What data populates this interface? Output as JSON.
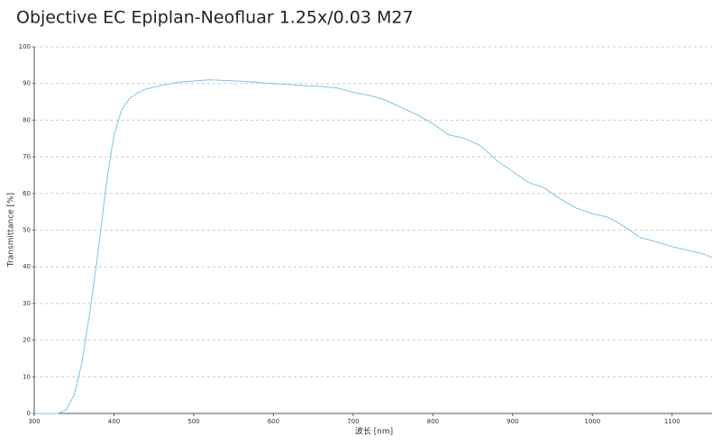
{
  "chart_data": {
    "type": "line",
    "title": "Objective EC Epiplan-Neofluar 1.25x/0.03 M27",
    "x_label": "波长 [nm]",
    "y_label": "Transmittance [%]",
    "x": [
      300,
      310,
      320,
      330,
      340,
      350,
      360,
      370,
      380,
      390,
      400,
      410,
      420,
      430,
      440,
      460,
      480,
      500,
      520,
      540,
      560,
      580,
      600,
      620,
      640,
      660,
      680,
      700,
      720,
      740,
      760,
      780,
      800,
      820,
      840,
      860,
      880,
      900,
      920,
      940,
      960,
      980,
      1000,
      1020,
      1040,
      1060,
      1080,
      1100,
      1120,
      1140,
      1150
    ],
    "series": [
      {
        "name": "Transmittance",
        "color": "#7cc4ea",
        "values": [
          0,
          0,
          0,
          0,
          1,
          5,
          14,
          28,
          44,
          62,
          76,
          83,
          86,
          87.5,
          88.5,
          89.5,
          90.3,
          90.7,
          91,
          90.8,
          90.6,
          90.3,
          90,
          89.7,
          89.4,
          89.2,
          88.8,
          87.6,
          86.8,
          85.5,
          83.5,
          81.5,
          79,
          76,
          75,
          73,
          69,
          66,
          63,
          61.5,
          58.5,
          56,
          54.5,
          53.5,
          51,
          48,
          46.8,
          45.5,
          44.5,
          43.5,
          42.5
        ]
      }
    ],
    "xlim": [
      300,
      1150
    ],
    "ylim": [
      0,
      100
    ],
    "xticks": [
      300,
      400,
      500,
      600,
      700,
      800,
      900,
      1000,
      1100
    ],
    "yticks": [
      0,
      10,
      20,
      30,
      40,
      50,
      60,
      70,
      80,
      90,
      100
    ],
    "grid": true
  }
}
